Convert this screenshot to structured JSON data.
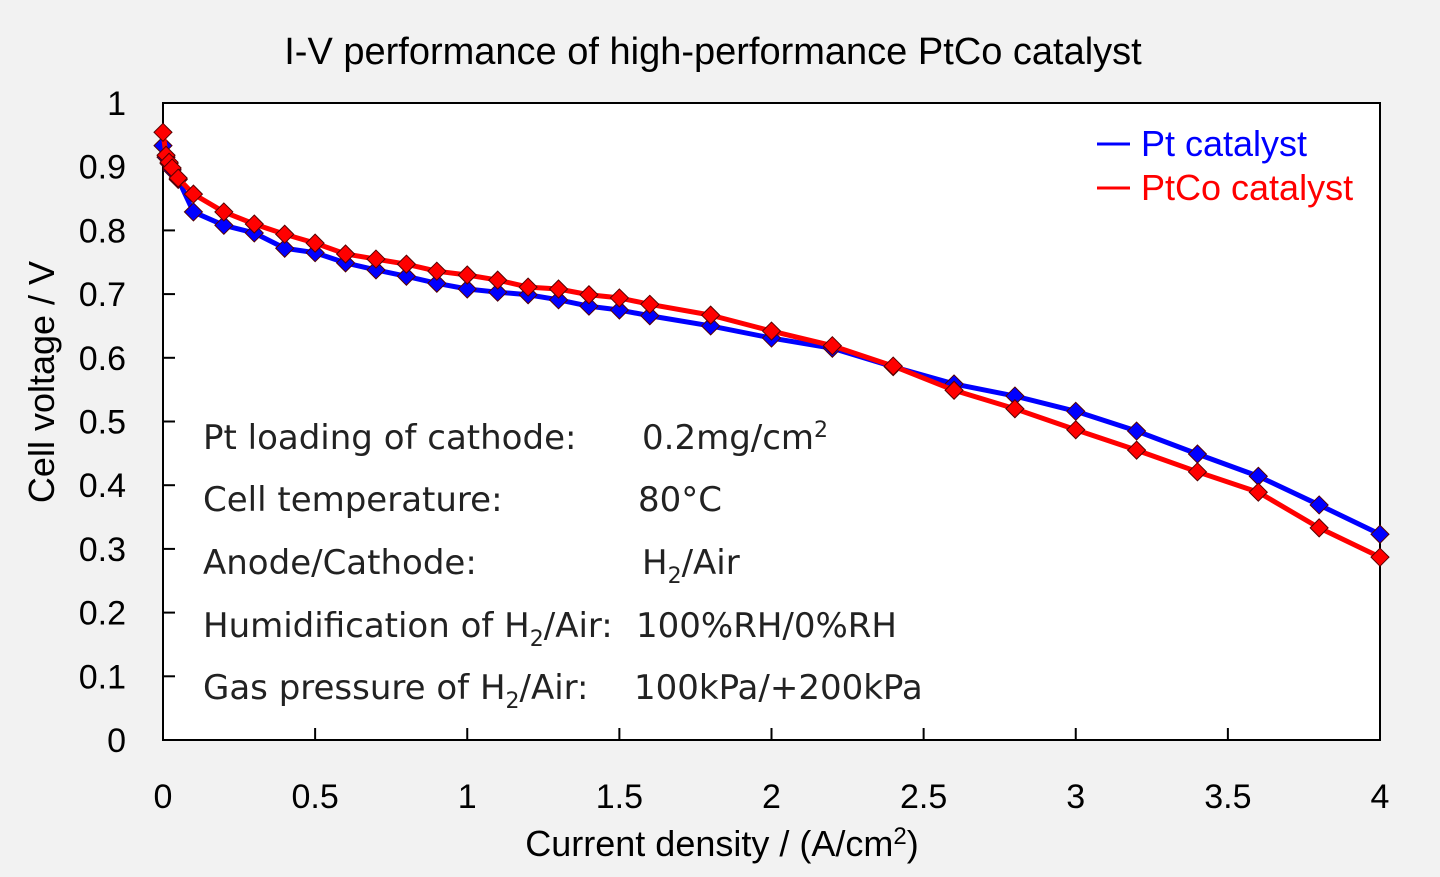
{
  "chart_data": {
    "type": "line",
    "title": "I-V performance of high-performance PtCo catalyst",
    "xlabel": "Current density / (A/cm",
    "xlabel_sup": "2",
    "xlabel_end": ")",
    "ylabel": "Cell voltage / V",
    "xlim": [
      0,
      4
    ],
    "ylim": [
      0,
      1
    ],
    "xticks": [
      "0",
      "0.5",
      "1",
      "1.5",
      "2",
      "2.5",
      "3",
      "3.5",
      "4"
    ],
    "yticks": [
      "0",
      "0.1",
      "0.2",
      "0.3",
      "0.4",
      "0.5",
      "0.6",
      "0.7",
      "0.8",
      "0.9",
      "1"
    ],
    "grid": false,
    "legend_position": "top-right",
    "series": [
      {
        "name": "Pt catalyst",
        "color": "#0000ff",
        "x": [
          0,
          0.01,
          0.02,
          0.03,
          0.05,
          0.1,
          0.2,
          0.3,
          0.4,
          0.5,
          0.6,
          0.7,
          0.8,
          0.9,
          1.0,
          1.1,
          1.2,
          1.3,
          1.4,
          1.5,
          1.6,
          1.8,
          2.0,
          2.2,
          2.4,
          2.6,
          2.8,
          3.0,
          3.2,
          3.4,
          3.6,
          3.8,
          4.0
        ],
        "y": [
          0.933,
          0.915,
          0.905,
          0.895,
          0.88,
          0.829,
          0.808,
          0.796,
          0.772,
          0.765,
          0.749,
          0.738,
          0.728,
          0.717,
          0.708,
          0.703,
          0.699,
          0.691,
          0.681,
          0.675,
          0.666,
          0.65,
          0.631,
          0.615,
          0.586,
          0.559,
          0.54,
          0.516,
          0.485,
          0.449,
          0.414,
          0.369,
          0.323
        ]
      },
      {
        "name": "PtCo catalyst",
        "color": "#ff0000",
        "x": [
          0,
          0.01,
          0.02,
          0.03,
          0.05,
          0.1,
          0.2,
          0.3,
          0.4,
          0.5,
          0.6,
          0.7,
          0.8,
          0.9,
          1.0,
          1.1,
          1.2,
          1.3,
          1.4,
          1.5,
          1.6,
          1.8,
          2.0,
          2.2,
          2.4,
          2.6,
          2.8,
          3.0,
          3.2,
          3.4,
          3.6,
          3.8,
          4.0
        ],
        "y": [
          0.954,
          0.918,
          0.907,
          0.898,
          0.882,
          0.857,
          0.829,
          0.81,
          0.794,
          0.78,
          0.763,
          0.755,
          0.747,
          0.736,
          0.73,
          0.722,
          0.711,
          0.708,
          0.699,
          0.694,
          0.684,
          0.667,
          0.642,
          0.619,
          0.587,
          0.549,
          0.52,
          0.487,
          0.455,
          0.421,
          0.389,
          0.333,
          0.287
        ]
      }
    ],
    "annotations": [
      {
        "label": "Pt loading of cathode:",
        "value": "0.2mg/cm",
        "value_sup": "2"
      },
      {
        "label": "Cell temperature:",
        "value": "80°C"
      },
      {
        "label": "Anode/Cathode:",
        "value_a": "H",
        "value_sub": "2",
        "value_b": "/Air"
      },
      {
        "label_a": "Humidification of H",
        "label_sub": "2",
        "label_b": "/Air:",
        "value": "100%RH/0%RH"
      },
      {
        "label_a": "Gas pressure of H",
        "label_sub": "2",
        "label_b": "/Air:",
        "value": "100kPa/+200kPa"
      }
    ]
  }
}
